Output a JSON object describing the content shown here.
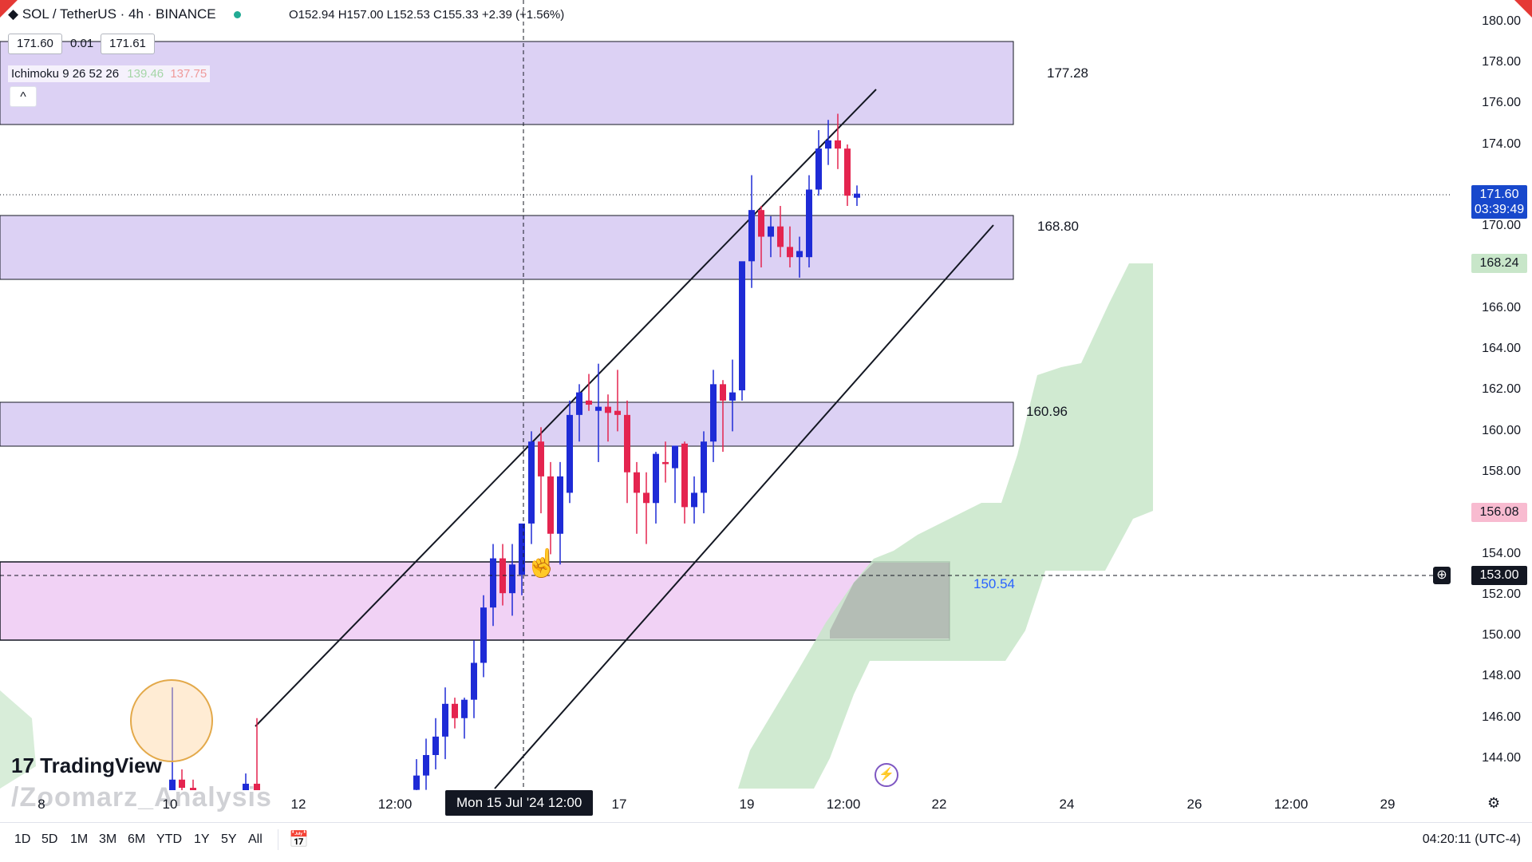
{
  "header": {
    "symbol": "SOL / TetherUS · 4h · BINANCE",
    "ohlc": "O152.94 H157.00 L152.53 C155.33 +2.39 (+1.56%)",
    "bid": "171.60",
    "spread": "0.01",
    "ask": "171.61",
    "indicator_name": "Ichimoku 9 26 52 26",
    "indicator_v1": "139.46",
    "indicator_v2": "137.75",
    "collapse_glyph": "^"
  },
  "colors": {
    "bull": "#1e2bd6",
    "bear": "#e4244f",
    "zone": "#dcd1f4",
    "zone_pink": "#f1d2f5",
    "cloud": "#c8e6c9",
    "last_price_bg": "#1848cc"
  },
  "price_axis": {
    "ticks": [
      "180.00",
      "178.00",
      "176.00",
      "174.00",
      "170.00",
      "166.00",
      "164.00",
      "162.00",
      "160.00",
      "158.00",
      "154.00",
      "152.00",
      "150.00",
      "148.00",
      "146.00",
      "144.00"
    ],
    "last_price": "171.60",
    "countdown": "03:39:49",
    "green_tag": "168.24",
    "red_tag": "156.08",
    "crosshair_price": "153.00"
  },
  "zones": {
    "z1": "177.28",
    "z2": "168.80",
    "z3": "160.96",
    "z4": "150.54"
  },
  "date_axis": {
    "labels": [
      "8",
      "10",
      "12",
      "12:00",
      "17",
      "19",
      "12:00",
      "22",
      "24",
      "26",
      "12:00",
      "29"
    ],
    "crosshair_date": "Mon 15 Jul '24   12:00"
  },
  "timeframes": [
    "1D",
    "5D",
    "1M",
    "3M",
    "6M",
    "YTD",
    "1Y",
    "5Y",
    "All"
  ],
  "clock": "04:20:11 (UTC-4)",
  "branding": {
    "logo": "TradingView",
    "watermark": "/Zoomarz_Analysis"
  }
}
